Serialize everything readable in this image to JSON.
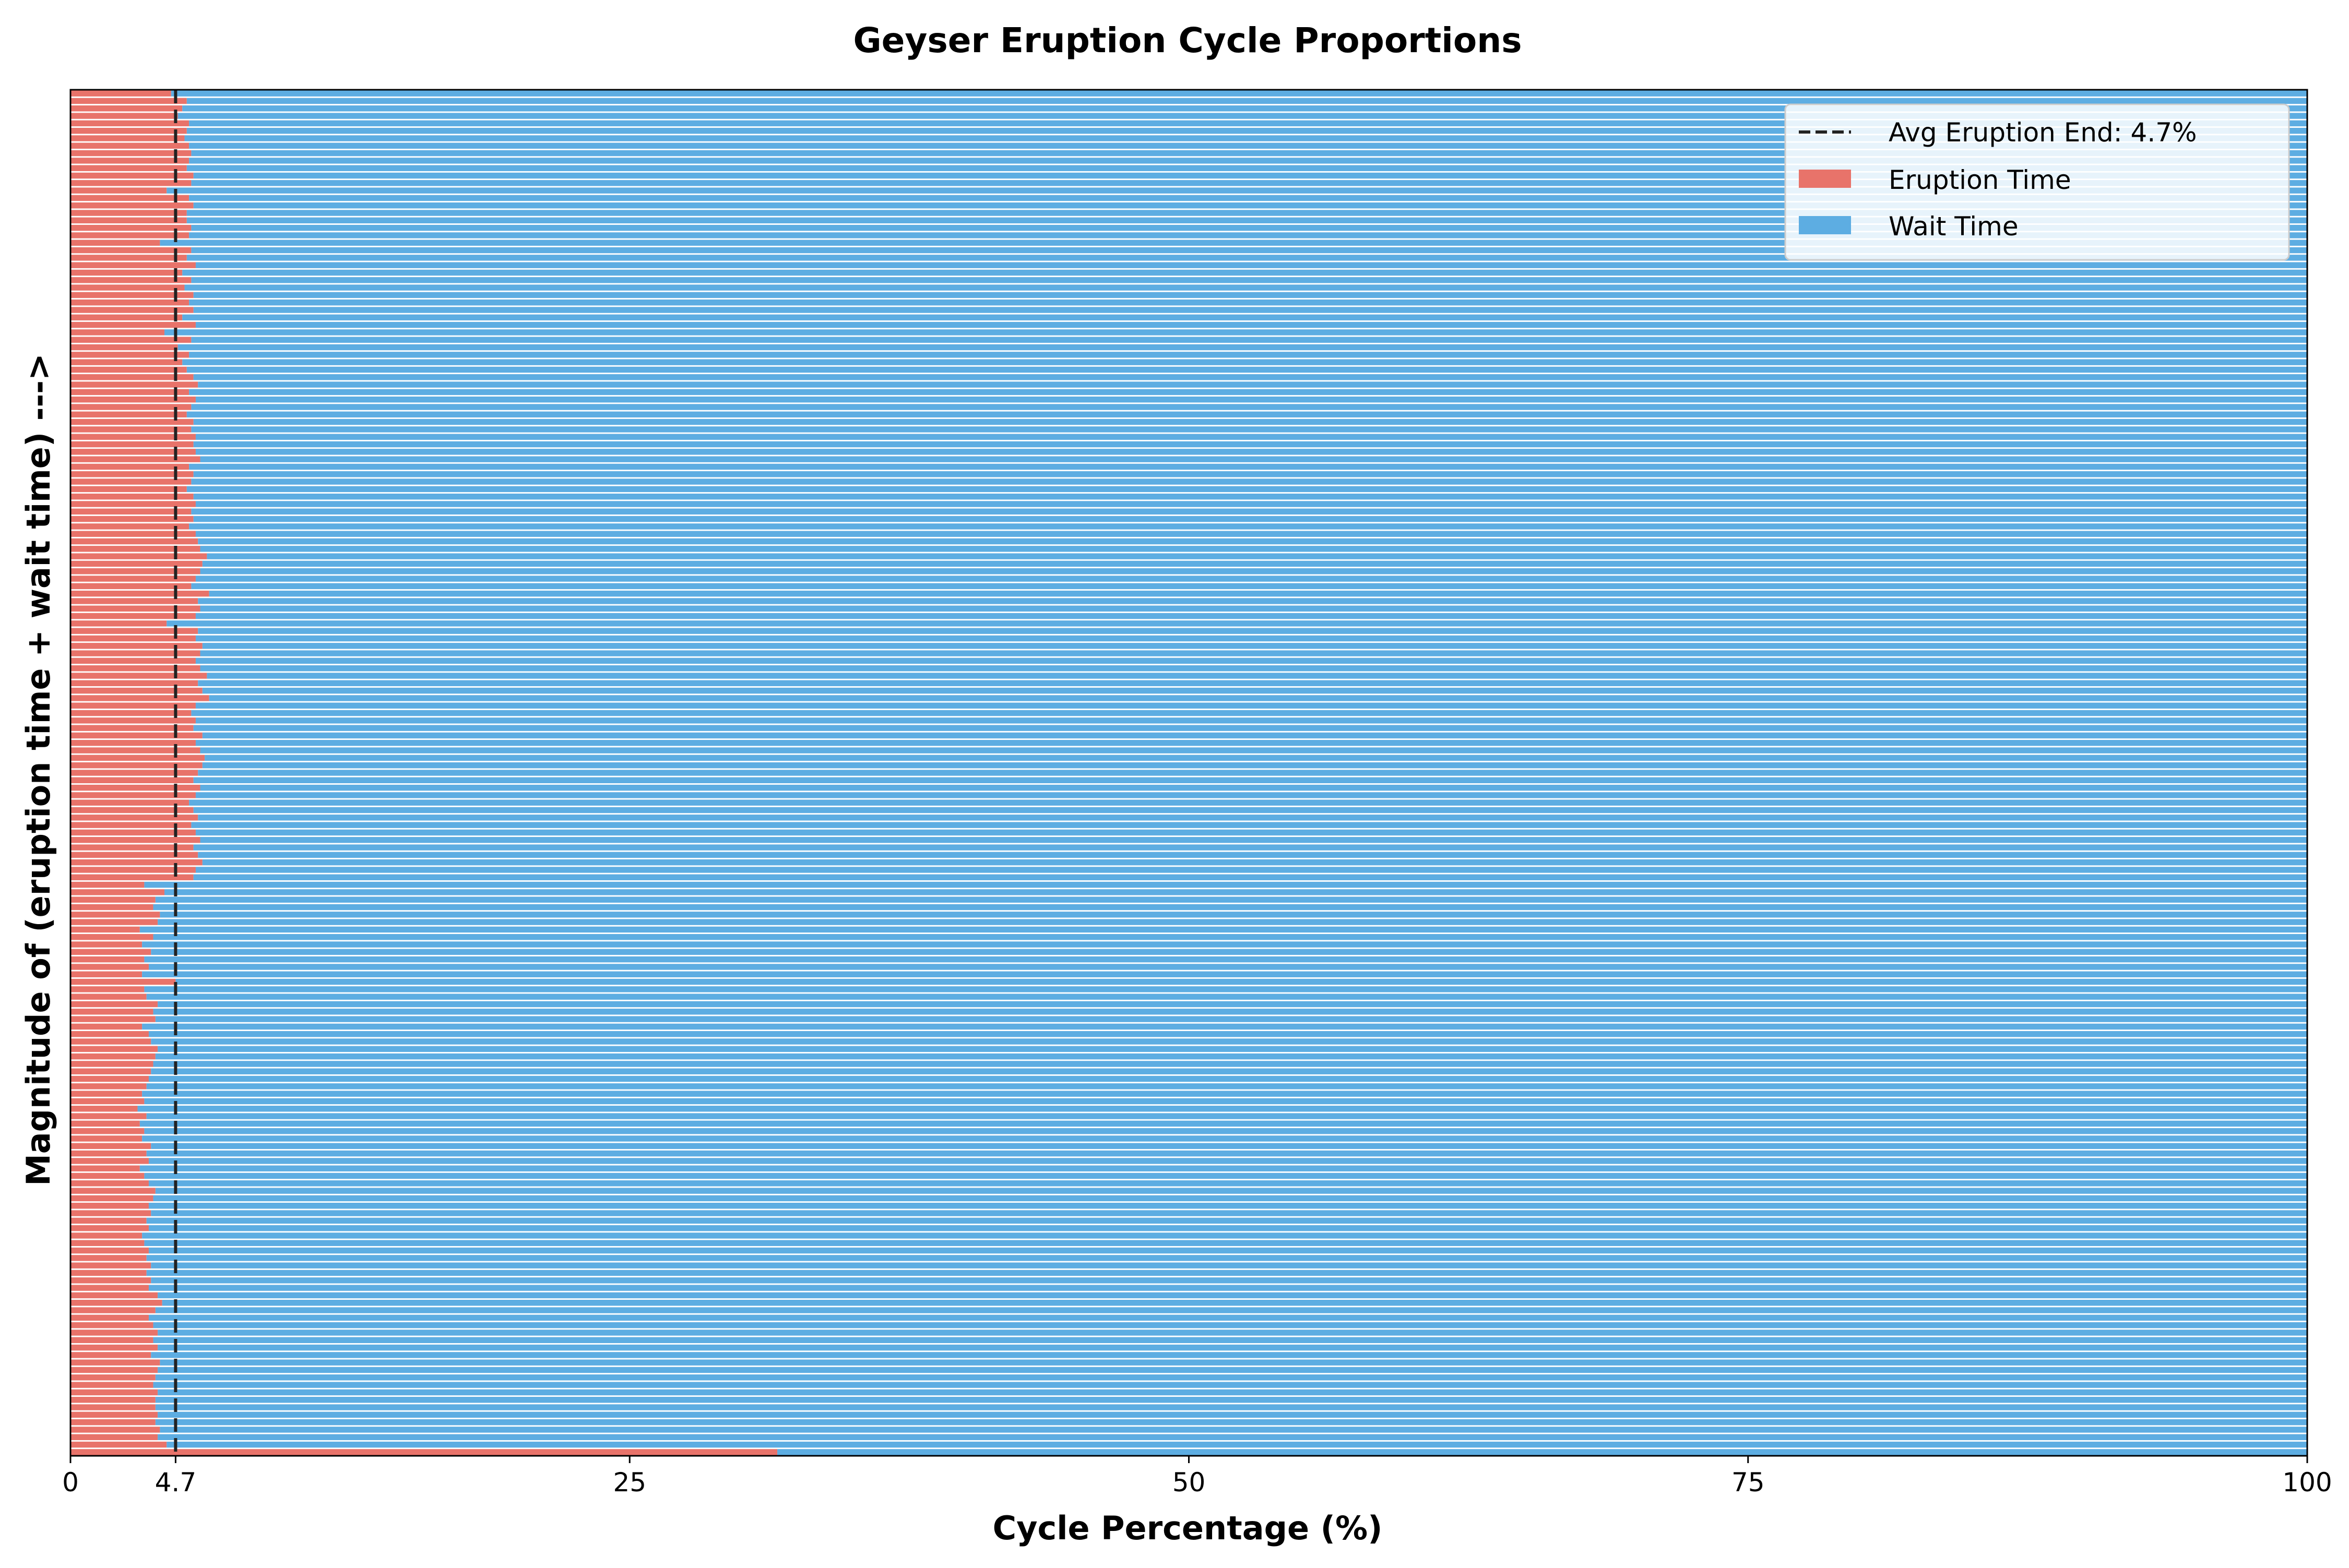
{
  "chart_data": {
    "type": "bar",
    "orientation": "horizontal",
    "stacked": true,
    "title": "Geyser Eruption Cycle Proportions",
    "xlabel": "Cycle Percentage (%)",
    "ylabel": "Magnitude of (eruption time + wait time) --->",
    "xlim": [
      0,
      100
    ],
    "xticks": [
      "0",
      "4.7",
      "25",
      "50",
      "75",
      "100"
    ],
    "xtick_values": [
      0,
      4.7,
      25,
      50,
      75,
      100
    ],
    "grid": false,
    "legend_position": "top-right",
    "reference_line": {
      "label": "Avg Eruption End: 4.7%",
      "value": 4.7,
      "style": "dashed",
      "color": "#222222"
    },
    "series": [
      {
        "name": "Eruption Time",
        "color": "#e8736a",
        "values_bottom_to_top": [
          31.6,
          4.3,
          3.9,
          4.0,
          3.8,
          3.9,
          3.8,
          3.8,
          3.9,
          3.7,
          3.8,
          3.9,
          4.0,
          3.6,
          3.9,
          3.7,
          3.9,
          3.7,
          3.5,
          3.8,
          4.1,
          3.9,
          3.5,
          3.6,
          3.4,
          3.6,
          3.4,
          3.5,
          3.3,
          3.2,
          3.5,
          3.4,
          3.6,
          3.5,
          3.7,
          3.8,
          3.5,
          3.3,
          3.1,
          3.5,
          3.4,
          3.6,
          3.2,
          3.3,
          3.1,
          3.4,
          3.0,
          3.3,
          3.2,
          3.4,
          3.5,
          3.6,
          3.7,
          3.8,
          3.9,
          3.6,
          3.5,
          3.2,
          3.8,
          3.7,
          3.9,
          3.4,
          3.3,
          4.7,
          3.2,
          3.5,
          3.3,
          3.6,
          3.2,
          3.7,
          3.1,
          3.9,
          4.0,
          3.7,
          3.8,
          4.2,
          3.3,
          5.5,
          5.6,
          5.9,
          5.7,
          5.5,
          5.8,
          5.6,
          5.4,
          5.7,
          5.5,
          5.3,
          5.6,
          5.8,
          5.5,
          5.7,
          5.9,
          6.0,
          5.8,
          5.6,
          5.9,
          5.5,
          5.6,
          5.4,
          5.6,
          6.2,
          5.9,
          5.7,
          6.1,
          5.8,
          5.6,
          5.8,
          5.9,
          5.6,
          5.7,
          4.3,
          5.6,
          5.8,
          5.7,
          6.2,
          5.4,
          5.6,
          5.8,
          5.9,
          6.1,
          5.8,
          5.7,
          5.6,
          5.3,
          5.5,
          5.4,
          5.6,
          5.5,
          5.2,
          5.4,
          5.5,
          5.3,
          5.8,
          5.6,
          5.5,
          5.6,
          5.4,
          5.5,
          5.2,
          5.4,
          5.6,
          5.3,
          5.7,
          5.5,
          5.2,
          5.0,
          5.3,
          4.8,
          5.4,
          4.2,
          5.6,
          5.0,
          5.5,
          5.3,
          5.5,
          5.1,
          5.4,
          5.0,
          5.6,
          5.2,
          5.4,
          4.0,
          5.3,
          5.4,
          5.2,
          5.2,
          5.5,
          5.3,
          4.3,
          5.4,
          5.5,
          5.2,
          5.3,
          5.4,
          5.3,
          5.1,
          5.2,
          5.3,
          4.8,
          5.0,
          5.2,
          4.5
        ]
      },
      {
        "name": "Wait Time",
        "color": "#5dade2",
        "fills_to": 100
      }
    ]
  }
}
